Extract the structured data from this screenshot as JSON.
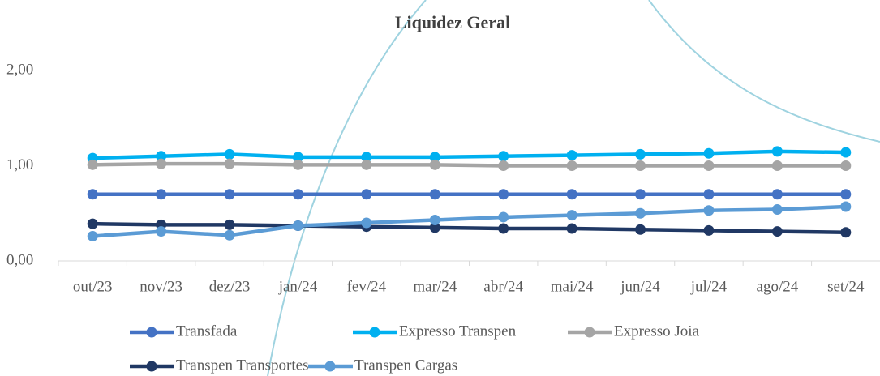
{
  "chart_data": {
    "type": "line",
    "title": "Liquidez Geral",
    "categories": [
      "out/23",
      "nov/23",
      "dez/23",
      "jan/24",
      "fev/24",
      "mar/24",
      "abr/24",
      "mai/24",
      "jun/24",
      "jul/24",
      "ago/24",
      "set/24"
    ],
    "series": [
      {
        "name": "Transfada",
        "color": "#4472c4",
        "values": [
          0.7,
          0.7,
          0.7,
          0.7,
          0.7,
          0.7,
          0.7,
          0.7,
          0.7,
          0.7,
          0.7,
          0.7
        ]
      },
      {
        "name": "Expresso Transpen",
        "color": "#00b0f0",
        "values": [
          1.08,
          1.1,
          1.12,
          1.09,
          1.09,
          1.09,
          1.1,
          1.11,
          1.12,
          1.13,
          1.15,
          1.14
        ]
      },
      {
        "name": "Expresso Joia",
        "color": "#a5a5a5",
        "values": [
          1.01,
          1.02,
          1.02,
          1.01,
          1.01,
          1.01,
          1.0,
          1.0,
          1.0,
          1.0,
          1.0,
          1.0
        ]
      },
      {
        "name": "Transpen Transportes",
        "color": "#203864",
        "values": [
          0.39,
          0.38,
          0.38,
          0.37,
          0.36,
          0.35,
          0.34,
          0.34,
          0.33,
          0.32,
          0.31,
          0.3
        ]
      },
      {
        "name": "Transpen Cargas",
        "color": "#5b9bd5",
        "values": [
          0.26,
          0.31,
          0.27,
          0.37,
          0.4,
          0.43,
          0.46,
          0.48,
          0.5,
          0.53,
          0.54,
          0.57
        ]
      }
    ],
    "ylim": [
      0,
      2.5
    ],
    "yticks": [
      {
        "value": 0,
        "label": "0,00"
      },
      {
        "value": 1,
        "label": "1,00"
      },
      {
        "value": 2,
        "label": "2,00"
      }
    ],
    "grid": false
  }
}
